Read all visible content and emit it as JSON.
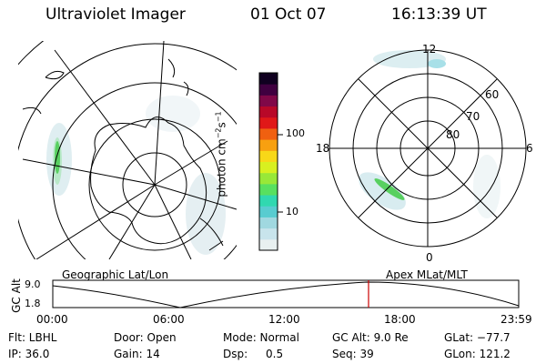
{
  "header": {
    "instrument": "Ultraviolet Imager",
    "date": "01 Oct 07",
    "time": "16:13:39 UT"
  },
  "left_map": {
    "caption": "Geographic Lat/Lon",
    "projection": "polar geographic",
    "coastline-icon": "coastline-shape"
  },
  "right_map": {
    "caption": "Apex MLat/MLT",
    "mlt_labels": {
      "top": "12",
      "left": "18",
      "right": "6",
      "bottom": "0"
    },
    "lat_labels": [
      "60",
      "70",
      "80"
    ]
  },
  "colorbar": {
    "unit_label": "photon cm⁻²s⁻¹",
    "unit_base": "photon cm",
    "unit_exp1": "−2",
    "unit_mid": "s",
    "unit_exp2": "−1",
    "ticks": [
      "100",
      "10"
    ],
    "scale": "log",
    "colors": [
      "#e8f0f0",
      "#c8e4ec",
      "#a0d8e0",
      "#58ccd0",
      "#30d8b0",
      "#58e060",
      "#98e838",
      "#d8f020",
      "#f8d818",
      "#f8a010",
      "#f06010",
      "#e01818",
      "#b80828",
      "#800848",
      "#400040",
      "#100020"
    ]
  },
  "timeline": {
    "y_axis_label": "GC Alt",
    "y_ticks": [
      "9.0",
      "1.8"
    ],
    "x_ticks": [
      "00:00",
      "06:00",
      "12:00",
      "18:00",
      "23:59"
    ],
    "current_time_marker": "16:13:39",
    "marker_color": "#cc0000"
  },
  "info": {
    "row1": {
      "filter": "Flt: LBHL",
      "door": "Door: Open",
      "mode": "Mode: Normal",
      "gc_alt": "GC Alt: 9.0 Re",
      "glat": "GLat: −77.7"
    },
    "row2": {
      "ip": "IP: 36.0",
      "gain": "Gain: 14",
      "dsp_label": "Dsp:",
      "dsp_value": "0.5",
      "seq": "Seq: 39",
      "glon": "GLon: 121.2"
    }
  }
}
